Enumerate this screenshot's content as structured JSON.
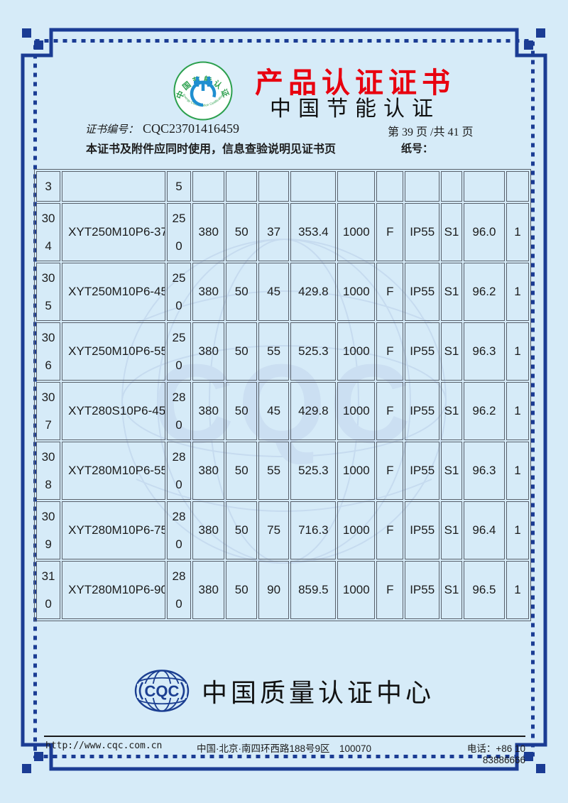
{
  "page": {
    "bg": "#d6ebf8",
    "border_navy": "#1b3c94",
    "title_red": "#e8000f",
    "grid_gray": "#58606b"
  },
  "header": {
    "logo": {
      "ring_text_top": "中国节能认证",
      "ring_text_bottom": "Energy Conservation Certification",
      "green": "#2ca04e",
      "blue": "#1f8fd0"
    },
    "title": "产品认证证书",
    "subtitle": "中国节能认证",
    "cert_no_label": "证书编号：",
    "cert_no": "CQC23701416459",
    "page_info": "第 39 页 /共 41 页",
    "note": "本证书及附件应同时使用，信息查验说明见证书页",
    "paper_no_label": "纸号："
  },
  "table": {
    "watermark_text": "CQC",
    "rows": [
      {
        "cells": [
          "3",
          "",
          "5",
          "",
          "",
          "",
          "",
          "",
          "",
          "",
          "",
          "",
          ""
        ]
      },
      {
        "cells": [
          "30\n4",
          "XYT250M10P6-37",
          "25\n0",
          "380",
          "50",
          "37",
          "353.4",
          "1000",
          "F",
          "IP55",
          "S1",
          "96.0",
          "1"
        ]
      },
      {
        "cells": [
          "30\n5",
          "XYT250M10P6-45",
          "25\n0",
          "380",
          "50",
          "45",
          "429.8",
          "1000",
          "F",
          "IP55",
          "S1",
          "96.2",
          "1"
        ]
      },
      {
        "cells": [
          "30\n6",
          "XYT250M10P6-55",
          "25\n0",
          "380",
          "50",
          "55",
          "525.3",
          "1000",
          "F",
          "IP55",
          "S1",
          "96.3",
          "1"
        ]
      },
      {
        "cells": [
          "30\n7",
          "XYT280S10P6-45",
          "28\n0",
          "380",
          "50",
          "45",
          "429.8",
          "1000",
          "F",
          "IP55",
          "S1",
          "96.2",
          "1"
        ]
      },
      {
        "cells": [
          "30\n8",
          "XYT280M10P6-55",
          "28\n0",
          "380",
          "50",
          "55",
          "525.3",
          "1000",
          "F",
          "IP55",
          "S1",
          "96.3",
          "1"
        ]
      },
      {
        "cells": [
          "30\n9",
          "XYT280M10P6-75",
          "28\n0",
          "380",
          "50",
          "75",
          "716.3",
          "1000",
          "F",
          "IP55",
          "S1",
          "96.4",
          "1"
        ]
      },
      {
        "cells": [
          "31\n0",
          "XYT280M10P6-90",
          "28\n0",
          "380",
          "50",
          "90",
          "859.5",
          "1000",
          "F",
          "IP55",
          "S1",
          "96.5",
          "1"
        ]
      }
    ]
  },
  "footer": {
    "logo_text": "CQC",
    "org_name": "中国质量认证中心",
    "navy": "#1b3e91"
  },
  "contact": {
    "url": "http://www.cqc.com.cn",
    "address": "中国·北京·南四环西路188号9区　100070",
    "phone": "电话：+86 10 83886666"
  }
}
